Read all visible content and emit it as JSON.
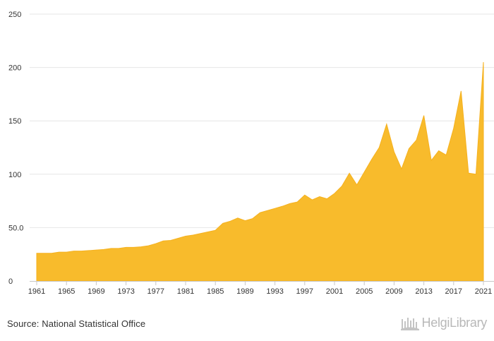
{
  "chart_data": {
    "type": "area",
    "title": "",
    "xlabel": "",
    "ylabel": "",
    "ylim": [
      0,
      250
    ],
    "yticks": [
      0,
      50,
      100,
      150,
      200,
      250
    ],
    "ytick_labels": [
      "0",
      "50.0",
      "100",
      "150",
      "200",
      "250"
    ],
    "xtick_labels": [
      "1961",
      "1965",
      "1969",
      "1973",
      "1977",
      "1981",
      "1985",
      "1989",
      "1993",
      "1997",
      "2001",
      "2005",
      "2009",
      "2013",
      "2017",
      "2021"
    ],
    "grid": true,
    "color": "#F8BB2C",
    "x": [
      1961,
      1962,
      1963,
      1964,
      1965,
      1966,
      1967,
      1968,
      1969,
      1970,
      1971,
      1972,
      1973,
      1974,
      1975,
      1976,
      1977,
      1978,
      1979,
      1980,
      1981,
      1982,
      1983,
      1984,
      1985,
      1986,
      1987,
      1988,
      1989,
      1990,
      1991,
      1992,
      1993,
      1994,
      1995,
      1996,
      1997,
      1998,
      1999,
      2000,
      2001,
      2002,
      2003,
      2004,
      2005,
      2006,
      2007,
      2008,
      2009,
      2010,
      2011,
      2012,
      2013,
      2014,
      2015,
      2016,
      2017,
      2018,
      2019,
      2020,
      2021
    ],
    "values": [
      26,
      26,
      26,
      27,
      27,
      28,
      28,
      28.5,
      29,
      29.5,
      30.5,
      30.5,
      31.5,
      31.5,
      32,
      33,
      35,
      37.5,
      38,
      40,
      42,
      43,
      44.5,
      46,
      47.5,
      54,
      56,
      59,
      56.5,
      58.5,
      64,
      66,
      68,
      70,
      72.5,
      74,
      80.5,
      76,
      79,
      77,
      82,
      89,
      101,
      90,
      102,
      114,
      125,
      147,
      121,
      105,
      124,
      132,
      155,
      113,
      122,
      118,
      143,
      178,
      101,
      100,
      205
    ]
  },
  "footer": {
    "source_label": "Source: National Statistical Office",
    "brand_name": "HelgiLibrary",
    "brand_icon": "library-icon"
  }
}
